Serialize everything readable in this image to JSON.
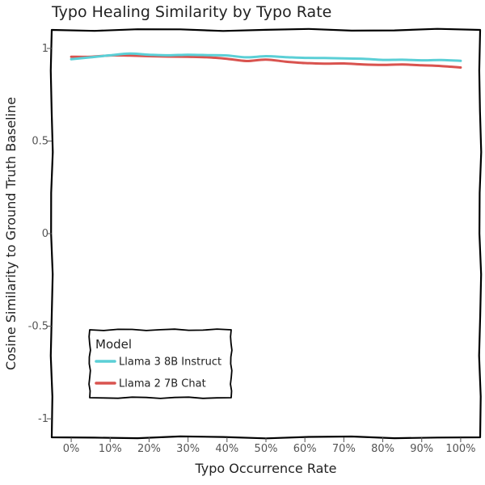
{
  "chart_data": {
    "type": "line",
    "title": "Typo Healing Similarity by Typo Rate",
    "xlabel": "Typo Occurrence Rate",
    "ylabel": "Cosine Similarity to Ground Truth Baseline",
    "x": [
      0,
      5,
      10,
      15,
      20,
      25,
      30,
      35,
      40,
      45,
      50,
      55,
      60,
      65,
      70,
      75,
      80,
      85,
      90,
      95,
      100
    ],
    "x_ticks": [
      0,
      10,
      20,
      30,
      40,
      50,
      60,
      70,
      80,
      90,
      100
    ],
    "x_tick_labels": [
      "0%",
      "10%",
      "20%",
      "30%",
      "40%",
      "50%",
      "60%",
      "70%",
      "80%",
      "90%",
      "100%"
    ],
    "y_ticks": [
      -1,
      -0.5,
      0,
      0.5,
      1
    ],
    "y_tick_labels": [
      "-1",
      "-0.5",
      "0",
      "0.5",
      "1"
    ],
    "xlim": [
      -5,
      105
    ],
    "ylim": [
      -1.1,
      1.1
    ],
    "grid": false,
    "legend": {
      "title": "Model",
      "position": "bottom-left"
    },
    "series": [
      {
        "name": "Llama 3 8B Instruct",
        "color": "#5bcfd6",
        "values": [
          0.942,
          0.952,
          0.963,
          0.972,
          0.966,
          0.963,
          0.966,
          0.964,
          0.962,
          0.952,
          0.958,
          0.953,
          0.949,
          0.948,
          0.946,
          0.944,
          0.938,
          0.939,
          0.936,
          0.937,
          0.933
        ]
      },
      {
        "name": "Llama 2 7B Chat",
        "color": "#d9534f",
        "values": [
          0.955,
          0.955,
          0.962,
          0.961,
          0.958,
          0.956,
          0.955,
          0.952,
          0.944,
          0.932,
          0.94,
          0.929,
          0.921,
          0.918,
          0.919,
          0.913,
          0.911,
          0.913,
          0.909,
          0.905,
          0.897
        ]
      }
    ]
  }
}
